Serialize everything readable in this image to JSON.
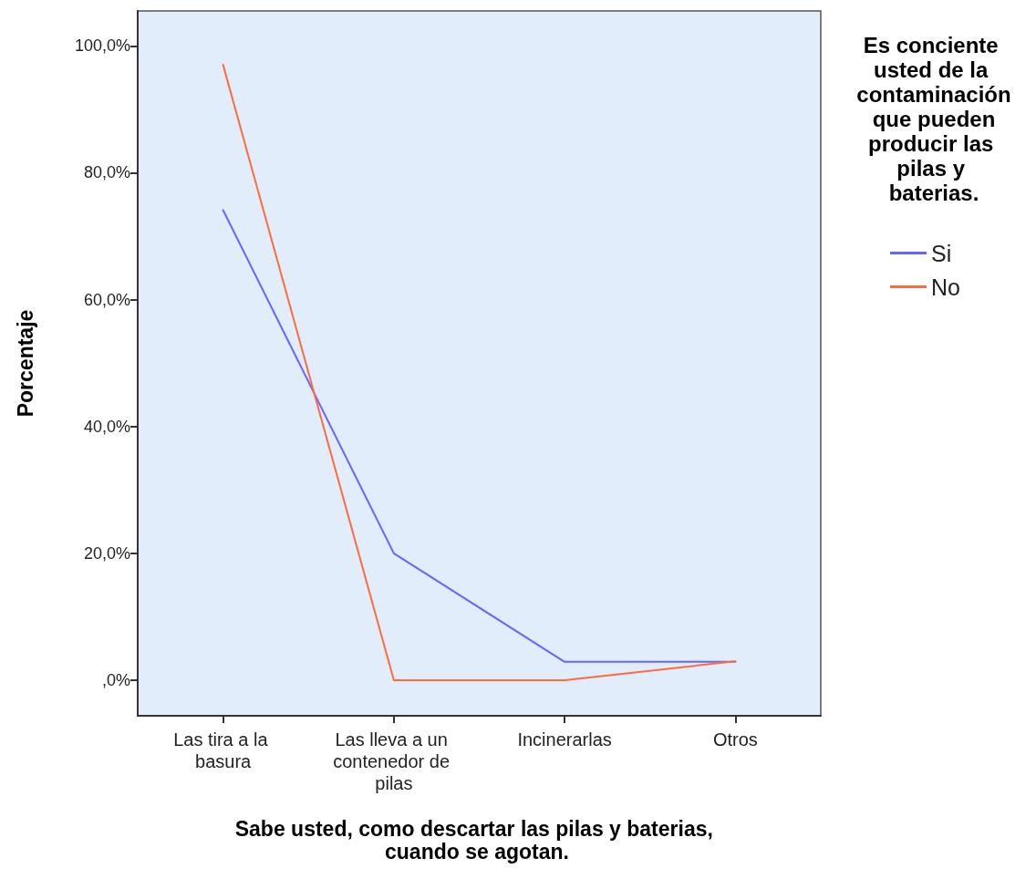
{
  "chart_data": {
    "type": "line",
    "xlabel": "Sabe usted, como descartar las pilas y baterias, cuando se agotan.",
    "ylabel": "Porcentaje",
    "legend_title": "Es conciente usted de la contaminación que pueden producir las pilas y baterias.",
    "categories": [
      "Las tira a la basura",
      "Las lleva a un contenedor de pilas",
      "Incinerarlas",
      "Otros"
    ],
    "series": [
      {
        "name": "Si",
        "color": "#6666ff",
        "values": [
          74.1,
          20.0,
          2.9,
          2.9
        ]
      },
      {
        "name": "No",
        "color": "#ff6a3d",
        "values": [
          97.0,
          0.0,
          0.0,
          3.0
        ]
      }
    ],
    "ylim": [
      -5.6,
      105.5
    ],
    "yticks": [
      {
        "value": 0,
        "label": ",0%"
      },
      {
        "value": 20,
        "label": "20,0%"
      },
      {
        "value": 40,
        "label": "40,0%"
      },
      {
        "value": 60,
        "label": "60,0%"
      },
      {
        "value": 80,
        "label": "80,0%"
      },
      {
        "value": 100,
        "label": "100,0%"
      }
    ],
    "grid": false,
    "legend": "right",
    "marker": "none",
    "line_style": "solid"
  }
}
